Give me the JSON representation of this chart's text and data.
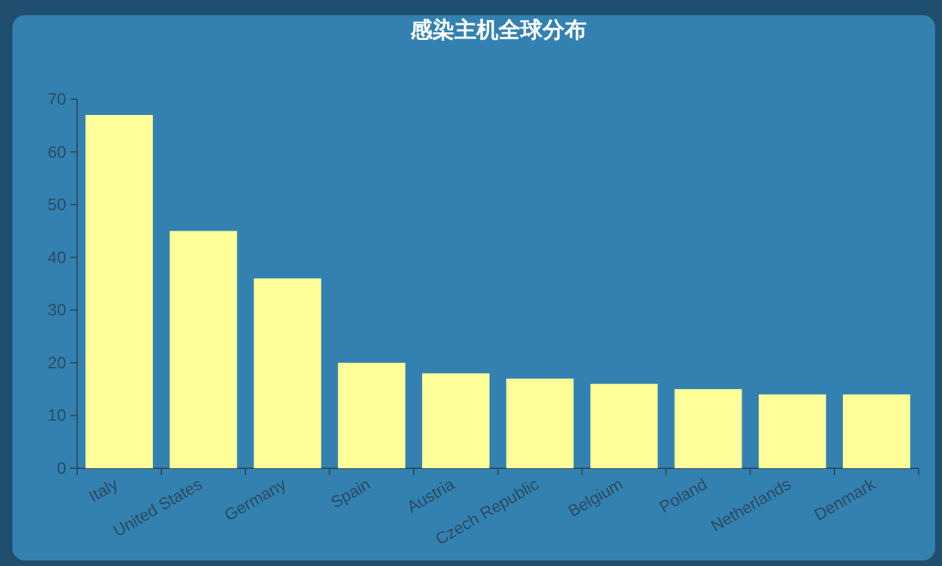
{
  "chart_data": {
    "type": "bar",
    "title": "感染主机全球分布",
    "categories": [
      "Italy",
      "United States",
      "Germany",
      "Spain",
      "Austria",
      "Czech Republic",
      "Belgium",
      "Poland",
      "Netherlands",
      "Denmark"
    ],
    "values": [
      67,
      45,
      36,
      20,
      18,
      17,
      16,
      15,
      14,
      14
    ],
    "color": "#ffff99",
    "ylim": [
      0,
      70
    ],
    "yticks": [
      0,
      10,
      20,
      30,
      40,
      50,
      60,
      70
    ]
  }
}
